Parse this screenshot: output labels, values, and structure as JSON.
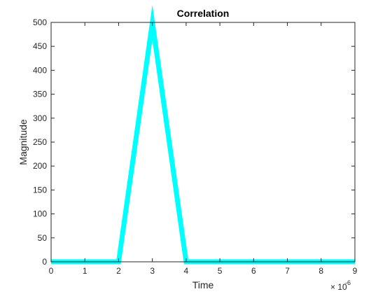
{
  "chart_data": {
    "type": "line",
    "title": "Correlation",
    "xlabel": "Time",
    "ylabel": "Magnitude",
    "x_exponent": {
      "base": "× 10",
      "power": "-6"
    },
    "xlim": [
      0,
      9
    ],
    "ylim": [
      0,
      500
    ],
    "x_ticks": [
      0,
      1,
      2,
      3,
      4,
      5,
      6,
      7,
      8,
      9
    ],
    "y_ticks": [
      0,
      50,
      100,
      150,
      200,
      250,
      300,
      350,
      400,
      450,
      500
    ],
    "grid": false,
    "series": [
      {
        "color": "#00ffff",
        "x": [
          0,
          2,
          3,
          4,
          9
        ],
        "y": [
          0,
          0,
          500,
          0,
          0
        ]
      }
    ]
  }
}
